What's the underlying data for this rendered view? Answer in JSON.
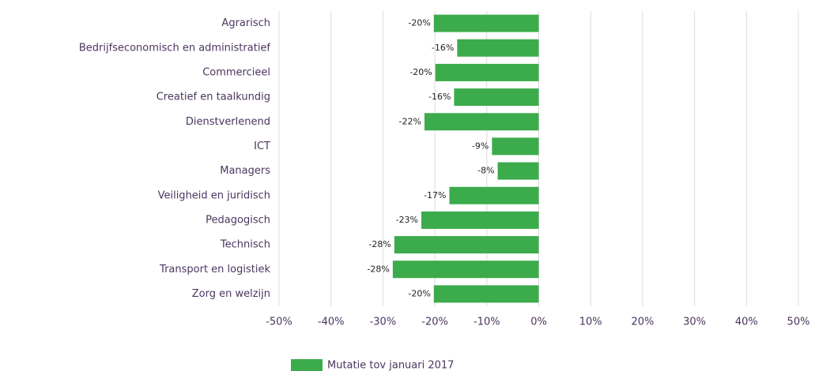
{
  "chart_data": {
    "type": "bar",
    "orientation": "horizontal",
    "categories": [
      "Agrarisch",
      "Bedrijfseconomisch en administratief",
      "Commercieel",
      "Creatief en taalkundig",
      "Dienstverlenend",
      "ICT",
      "Managers",
      "Veiligheid en juridisch",
      "Pedagogisch",
      "Technisch",
      "Transport en logistiek",
      "Zorg en welzijn"
    ],
    "series": [
      {
        "name": "Mutatie tov januari 2017",
        "color": "#3cab4b",
        "values": [
          -20.2,
          -15.7,
          -19.9,
          -16.3,
          -22,
          -9,
          -7.9,
          -17.2,
          -22.6,
          -27.8,
          -28.1,
          -20.2
        ],
        "value_labels": [
          "-20%",
          "-16%",
          "-20%",
          "-16%",
          "-22%",
          "-9%",
          "-8%",
          "-17%",
          "-23%",
          "-28%",
          "-28%",
          "-20%"
        ]
      }
    ],
    "xlim": [
      -50,
      50
    ],
    "xticks": [
      {
        "value": -50,
        "label": "-50%"
      },
      {
        "value": -40,
        "label": "-40%"
      },
      {
        "value": -30,
        "label": "-30%"
      },
      {
        "value": -20,
        "label": "-20%"
      },
      {
        "value": -10,
        "label": "-10%"
      },
      {
        "value": 0,
        "label": "0%"
      },
      {
        "value": 10,
        "label": "10%"
      },
      {
        "value": 20,
        "label": "20%"
      },
      {
        "value": 30,
        "label": "30%"
      },
      {
        "value": 40,
        "label": "40%"
      },
      {
        "value": 50,
        "label": "50%"
      }
    ],
    "grid": true,
    "legend": "bottom"
  }
}
